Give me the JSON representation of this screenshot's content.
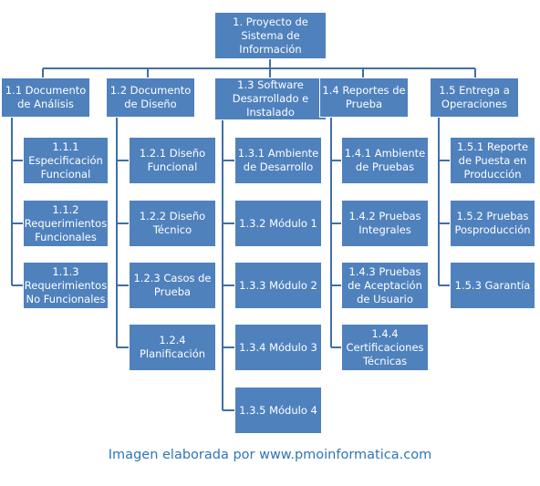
{
  "wbs": {
    "root": "1. Proyecto de\nSistema de\nInformación",
    "phases": [
      {
        "label": "1.1 Documento\nde Análisis",
        "items": [
          "1.1.1\nEspecificación\nFuncional",
          "1.1.2\nRequerimientos\nFuncionales",
          "1.1.3\nRequerimientos\nNo Funcionales"
        ]
      },
      {
        "label": "1.2 Documento\nde Diseño",
        "items": [
          "1.2.1 Diseño\nFuncional",
          "1.2.2 Diseño\nTécnico",
          "1.2.3 Casos de\nPrueba",
          "1.2.4\nPlanificación"
        ]
      },
      {
        "label": "1.3 Software\nDesarrollado e\nInstalado",
        "items": [
          "1.3.1 Ambiente\nde Desarrollo",
          "1.3.2 Módulo 1",
          "1.3.3 Módulo 2",
          "1.3.4 Módulo 3",
          "1.3.5 Módulo 4"
        ]
      },
      {
        "label": "1.4 Reportes de\nPrueba",
        "items": [
          "1.4.1 Ambiente\nde Pruebas",
          "1.4.2 Pruebas\nIntegrales",
          "1.4.3 Pruebas\nde Aceptación\nde Usuario",
          "1.4.4\nCertificaciones\nTécnicas"
        ]
      },
      {
        "label": "1.5 Entrega a\nOperaciones",
        "items": [
          "1.5.1 Reporte\nde Puesta en\nProducción",
          "1.5.2 Pruebas\nPosproducción",
          "1.5.3 Garantía"
        ]
      }
    ]
  },
  "credit": "Imagen elaborada por www.pmoinformatica.com",
  "colors": {
    "box": "#4f81bd",
    "line": "#3f6fa8",
    "text": "#ffffff",
    "credit": "#2e75b6"
  }
}
